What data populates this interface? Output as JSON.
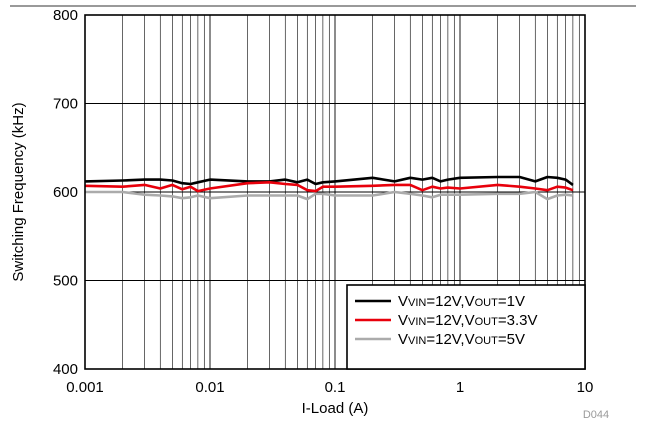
{
  "chart_data": {
    "type": "line",
    "xlabel": "I-Load (A)",
    "ylabel": "Switching Frequency (kHz)",
    "xscale": "log",
    "xlim": [
      0.001,
      10
    ],
    "ylim": [
      400,
      800
    ],
    "x_tick_labels": [
      "0.001",
      "0.01",
      "0.1",
      "1",
      "10"
    ],
    "y_tick_labels": [
      "400",
      "500",
      "600",
      "700",
      "800"
    ],
    "grid": true,
    "legend_position": "bottom-right",
    "figure_id": "D044",
    "series": [
      {
        "legend": {
          "a": "V",
          "a_sub": "VIN",
          "b": "=12V,V",
          "b_sub": "OUT",
          "c": "=1V"
        },
        "color": "#000000",
        "x": [
          0.001,
          0.002,
          0.003,
          0.004,
          0.005,
          0.006,
          0.007,
          0.008,
          0.01,
          0.02,
          0.03,
          0.04,
          0.05,
          0.06,
          0.07,
          0.08,
          0.1,
          0.2,
          0.3,
          0.4,
          0.5,
          0.6,
          0.7,
          0.8,
          1.0,
          2.0,
          3.0,
          4.0,
          5.0,
          6.0,
          7.0,
          8.0
        ],
        "y": [
          612,
          613,
          614,
          614,
          613,
          610,
          609,
          611,
          614,
          612,
          612,
          614,
          611,
          614,
          609,
          611,
          612,
          616,
          612,
          616,
          614,
          616,
          612,
          614,
          616,
          617,
          617,
          612,
          617,
          616,
          614,
          608
        ]
      },
      {
        "legend": {
          "a": "V",
          "a_sub": "VIN",
          "b": "=12V,V",
          "b_sub": "OUT",
          "c": "=3.3V"
        },
        "color": "#e8000b",
        "x": [
          0.001,
          0.002,
          0.003,
          0.004,
          0.005,
          0.006,
          0.007,
          0.008,
          0.01,
          0.02,
          0.03,
          0.04,
          0.05,
          0.06,
          0.07,
          0.08,
          0.1,
          0.2,
          0.3,
          0.4,
          0.5,
          0.6,
          0.7,
          0.8,
          1.0,
          2.0,
          3.0,
          4.0,
          5.0,
          6.0,
          7.0,
          8.0
        ],
        "y": [
          607,
          606,
          608,
          604,
          608,
          603,
          606,
          601,
          604,
          610,
          611,
          609,
          608,
          602,
          601,
          606,
          606,
          607,
          608,
          608,
          602,
          606,
          604,
          605,
          604,
          608,
          606,
          604,
          602,
          606,
          605,
          602
        ]
      },
      {
        "legend": {
          "a": "V",
          "a_sub": "VIN",
          "b": "=12V,V",
          "b_sub": "OUT",
          "c": "=5V"
        },
        "color": "#ababab",
        "x": [
          0.001,
          0.002,
          0.003,
          0.004,
          0.005,
          0.006,
          0.007,
          0.008,
          0.01,
          0.02,
          0.03,
          0.04,
          0.05,
          0.06,
          0.07,
          0.08,
          0.1,
          0.2,
          0.3,
          0.4,
          0.5,
          0.6,
          0.7,
          0.8,
          1.0,
          2.0,
          3.0,
          4.0,
          5.0,
          6.0,
          7.0,
          8.0
        ],
        "y": [
          600,
          600,
          597,
          596,
          595,
          593,
          594,
          596,
          593,
          596,
          596,
          596,
          596,
          592,
          598,
          598,
          596,
          596,
          600,
          598,
          596,
          594,
          597,
          597,
          597,
          598,
          598,
          600,
          592,
          596,
          597,
          596
        ]
      }
    ]
  }
}
